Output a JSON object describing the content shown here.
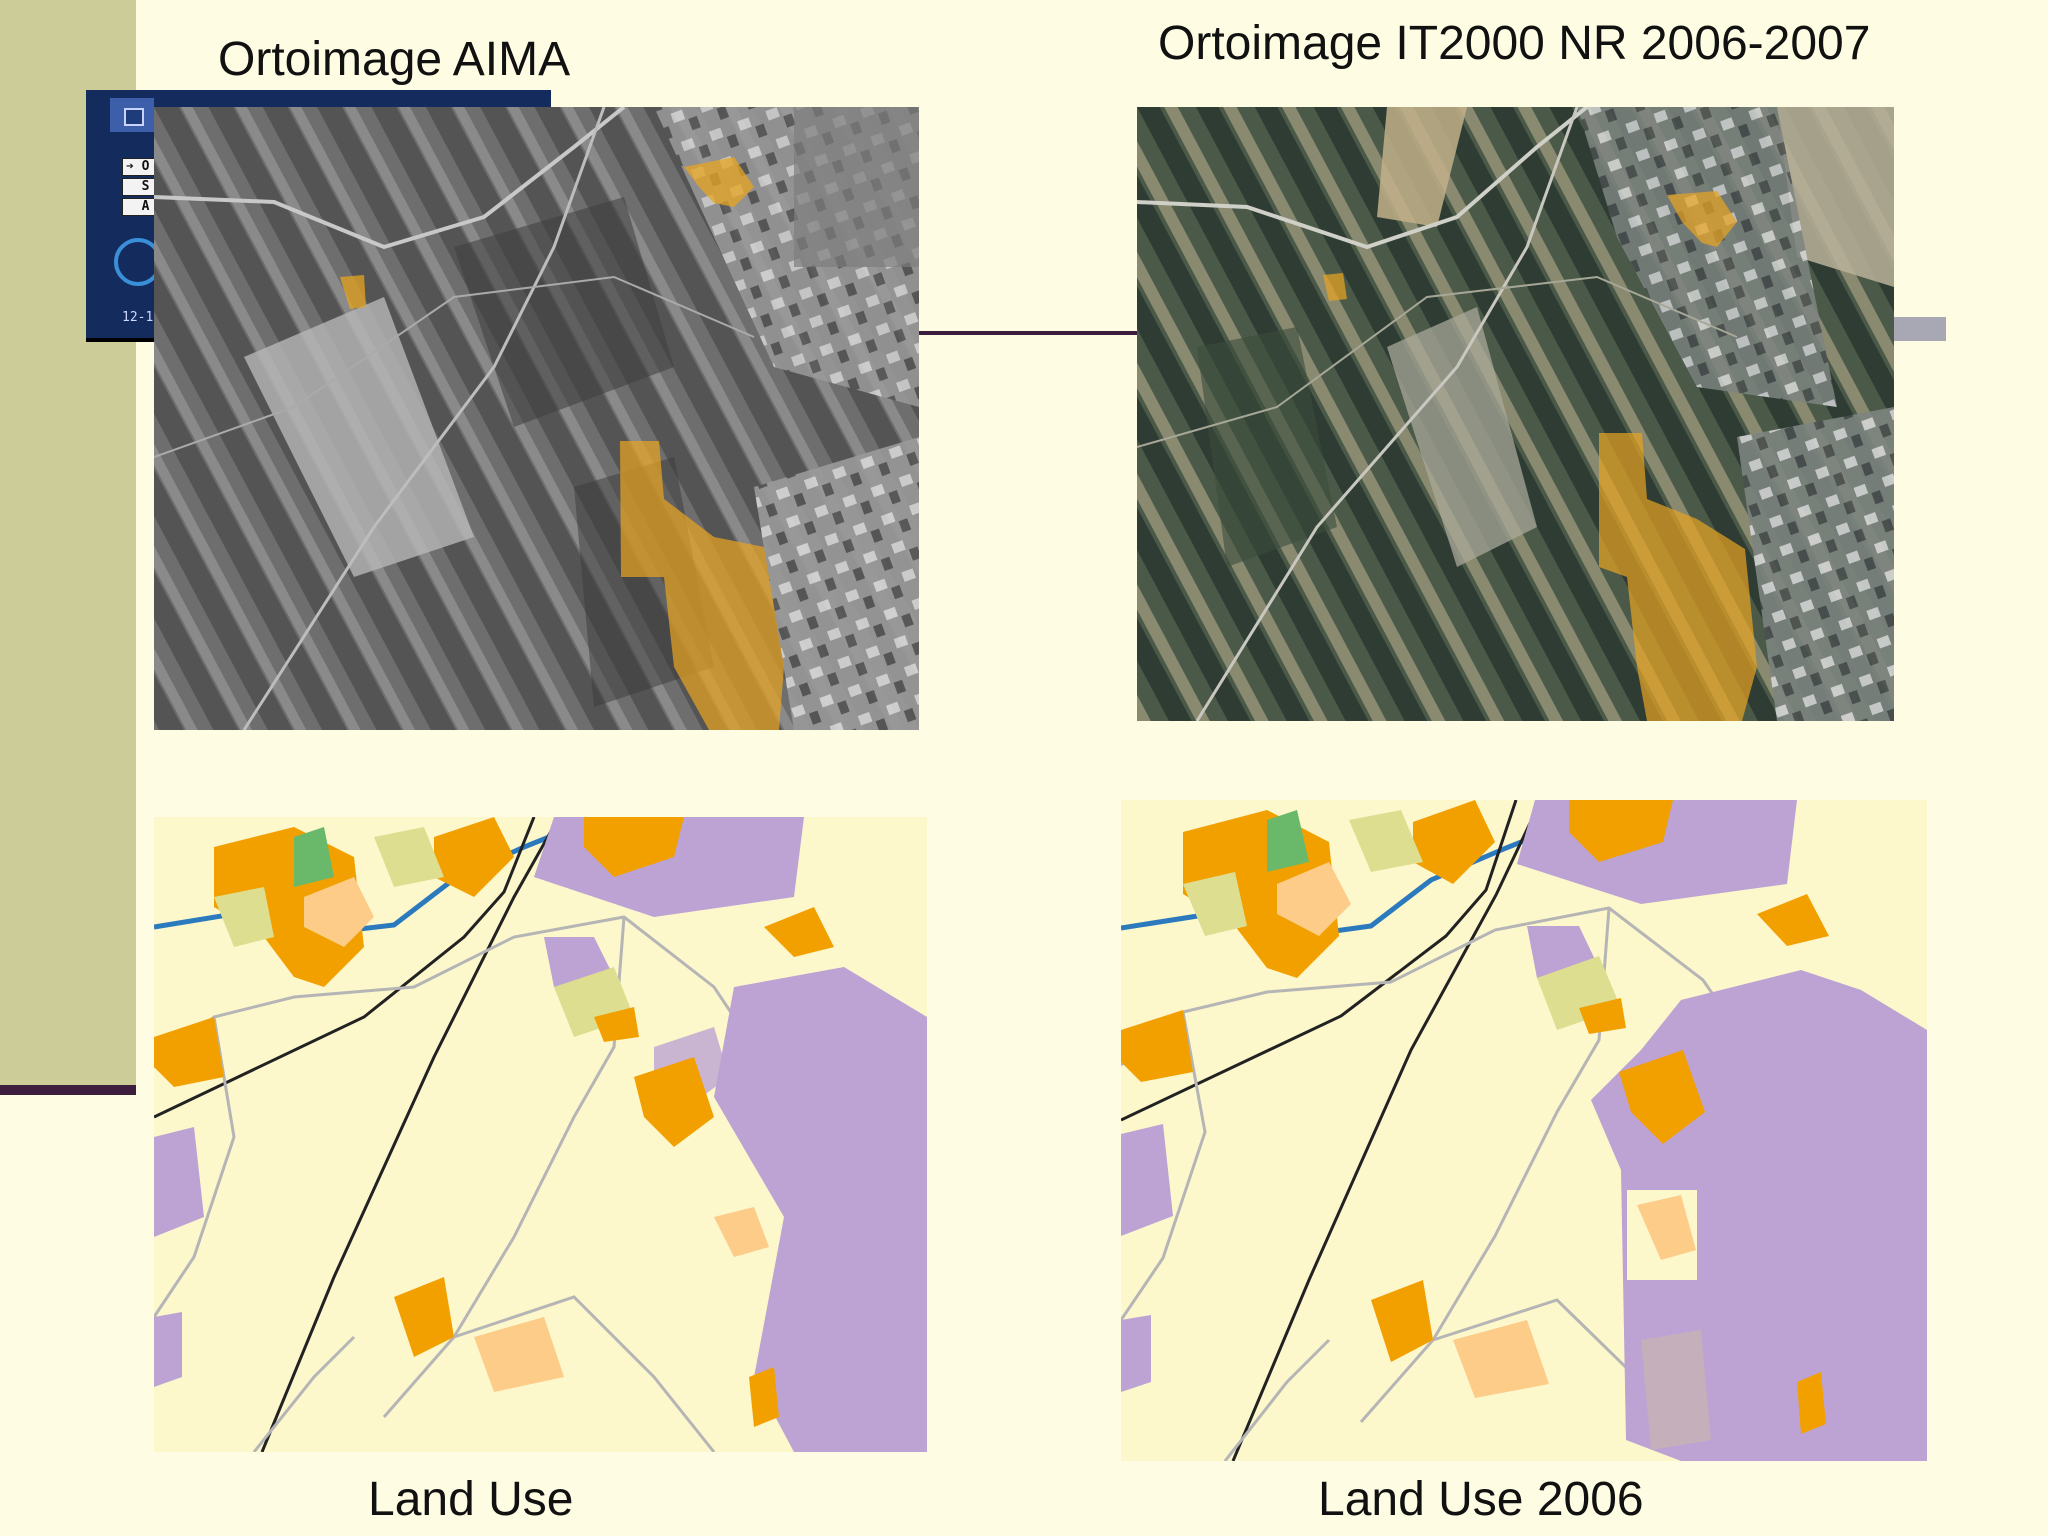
{
  "titles": {
    "top_left": "Ortoimage AIMA",
    "top_right": "Ortoimage IT2000 NR 2006-2007",
    "bottom_left": "Land Use",
    "bottom_right": "Land Use 2006"
  },
  "thumbnail": {
    "menu_letters": [
      "O",
      "S",
      "A"
    ],
    "date_text": "12-1"
  },
  "colors": {
    "background": "#fefde3",
    "sidebar": "#cccc99",
    "rule": "#3d1d3d",
    "highlight": "#e8a422",
    "landuse_industrial": "#bca3d3",
    "landuse_residential": "#f2a000",
    "landuse_residential_light": "#fccc88",
    "landuse_green": "#6ab86a",
    "landuse_mixed": "#dede90",
    "landuse_agricultural": "#fdf7cc",
    "landuse_roads": "#b5b5b5",
    "landuse_river": "#2a7abd"
  }
}
